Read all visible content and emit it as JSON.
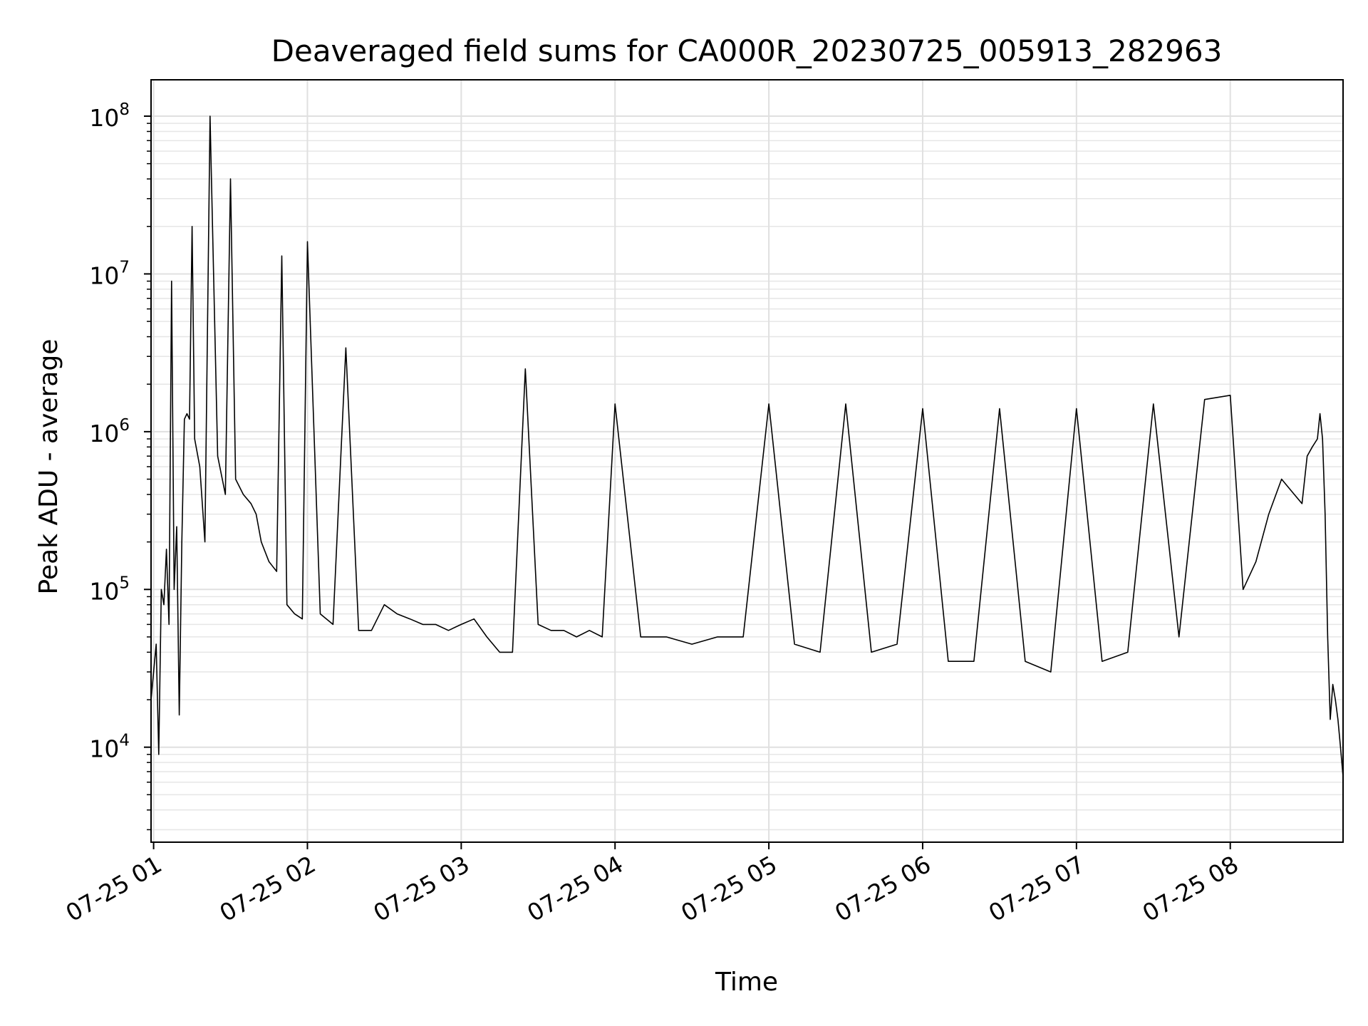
{
  "chart_data": {
    "type": "line",
    "title": "Deaveraged field sums for CA000R_20230725_005913_282963",
    "xlabel": "Time",
    "ylabel": "Peak ADU - average",
    "x_axis": {
      "kind": "time",
      "range": [
        "2023-07-25T00:59:00",
        "2023-07-25T08:44:00"
      ],
      "tick_values": [
        "2023-07-25T01:00",
        "2023-07-25T02:00",
        "2023-07-25T03:00",
        "2023-07-25T04:00",
        "2023-07-25T05:00",
        "2023-07-25T06:00",
        "2023-07-25T07:00",
        "2023-07-25T08:00"
      ],
      "tick_labels": [
        "07-25 01",
        "07-25 02",
        "07-25 03",
        "07-25 04",
        "07-25 05",
        "07-25 06",
        "07-25 07",
        "07-25 08"
      ]
    },
    "y_axis": {
      "scale": "log",
      "range": [
        2500,
        170000000
      ],
      "tick_values": [
        10000,
        100000,
        1000000,
        10000000,
        100000000
      ],
      "tick_labels": [
        {
          "base": "10",
          "exp": "4"
        },
        {
          "base": "10",
          "exp": "5"
        },
        {
          "base": "10",
          "exp": "6"
        },
        {
          "base": "10",
          "exp": "7"
        },
        {
          "base": "10",
          "exp": "8"
        }
      ]
    },
    "grid": {
      "major": true,
      "minor_y": true
    },
    "line_color": "#000000",
    "series": [
      {
        "x": [
          "07-25 00:59",
          "07-25 01:00",
          "07-25 01:01",
          "07-25 01:02",
          "07-25 01:03",
          "07-25 01:04",
          "07-25 01:05",
          "07-25 01:06",
          "07-25 01:07",
          "07-25 01:08",
          "07-25 01:09",
          "07-25 01:10",
          "07-25 01:11",
          "07-25 01:12",
          "07-25 01:13",
          "07-25 01:14",
          "07-25 01:15",
          "07-25 01:16",
          "07-25 01:18",
          "07-25 01:20",
          "07-25 01:22",
          "07-25 01:25",
          "07-25 01:28",
          "07-25 01:30",
          "07-25 01:32",
          "07-25 01:35",
          "07-25 01:38",
          "07-25 01:40",
          "07-25 01:42",
          "07-25 01:45",
          "07-25 01:48",
          "07-25 01:50",
          "07-25 01:52",
          "07-25 01:55",
          "07-25 01:58",
          "07-25 02:00",
          "07-25 02:05",
          "07-25 02:10",
          "07-25 02:15",
          "07-25 02:20",
          "07-25 02:25",
          "07-25 02:30",
          "07-25 02:35",
          "07-25 02:40",
          "07-25 02:45",
          "07-25 02:50",
          "07-25 02:55",
          "07-25 03:00",
          "07-25 03:05",
          "07-25 03:10",
          "07-25 03:15",
          "07-25 03:20",
          "07-25 03:25",
          "07-25 03:30",
          "07-25 03:35",
          "07-25 03:40",
          "07-25 03:45",
          "07-25 03:50",
          "07-25 03:55",
          "07-25 04:00",
          "07-25 04:10",
          "07-25 04:20",
          "07-25 04:30",
          "07-25 04:40",
          "07-25 04:50",
          "07-25 05:00",
          "07-25 05:10",
          "07-25 05:20",
          "07-25 05:30",
          "07-25 05:40",
          "07-25 05:50",
          "07-25 06:00",
          "07-25 06:10",
          "07-25 06:20",
          "07-25 06:30",
          "07-25 06:40",
          "07-25 06:50",
          "07-25 07:00",
          "07-25 07:10",
          "07-25 07:20",
          "07-25 07:30",
          "07-25 07:40",
          "07-25 07:50",
          "07-25 08:00",
          "07-25 08:05",
          "07-25 08:10",
          "07-25 08:15",
          "07-25 08:20",
          "07-25 08:25",
          "07-25 08:28",
          "07-25 08:30",
          "07-25 08:32",
          "07-25 08:34",
          "07-25 08:35",
          "07-25 08:36",
          "07-25 08:37",
          "07-25 08:38",
          "07-25 08:39",
          "07-25 08:40",
          "07-25 08:41",
          "07-25 08:42",
          "07-25 08:43",
          "07-25 08:44"
        ],
        "y": [
          20000,
          30000,
          45000,
          9000,
          100000,
          80000,
          180000,
          60000,
          9000000,
          100000,
          250000,
          16000,
          200000,
          1200000,
          1300000,
          1200000,
          20000000,
          900000,
          600000,
          200000,
          100000000,
          700000,
          400000,
          40000000,
          500000,
          400000,
          350000,
          300000,
          200000,
          150000,
          130000,
          13000000,
          80000,
          70000,
          65000,
          16000000,
          70000,
          60000,
          3400000,
          55000,
          55000,
          80000,
          70000,
          65000,
          60000,
          60000,
          55000,
          60000,
          65000,
          50000,
          40000,
          40000,
          2500000,
          60000,
          55000,
          55000,
          50000,
          55000,
          50000,
          1500000,
          50000,
          50000,
          45000,
          50000,
          50000,
          1500000,
          45000,
          40000,
          1500000,
          40000,
          45000,
          1400000,
          35000,
          35000,
          1400000,
          35000,
          30000,
          1400000,
          35000,
          40000,
          1500000,
          50000,
          1600000,
          1700000,
          100000,
          150000,
          300000,
          500000,
          400000,
          350000,
          700000,
          800000,
          900000,
          1300000,
          900000,
          300000,
          50000,
          15000,
          25000,
          20000,
          15000,
          10000,
          6500
        ]
      }
    ]
  }
}
